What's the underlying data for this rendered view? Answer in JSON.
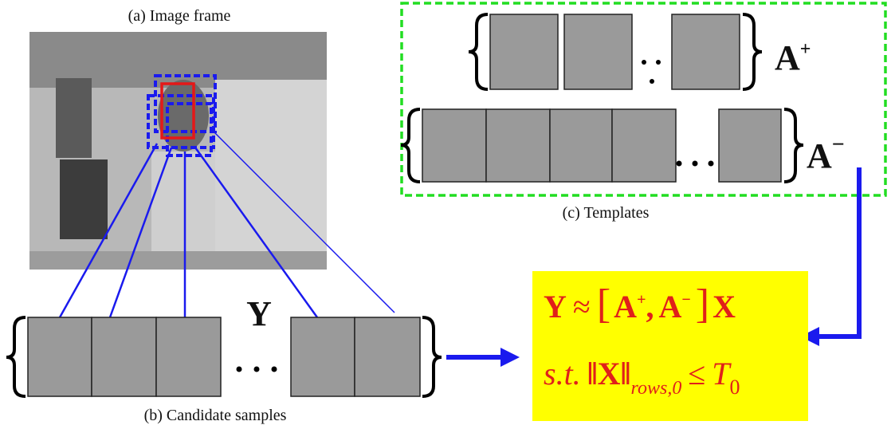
{
  "captions": {
    "image_frame": "(a) Image frame",
    "candidate_samples": "(b) Candidate samples",
    "templates": "(c) Templates"
  },
  "symbols": {
    "candidates": "Y",
    "positive": {
      "base": "A",
      "sup": "+"
    },
    "negative": {
      "base": "A",
      "sup": "−"
    }
  },
  "equation": {
    "line1": {
      "lhs": "Y",
      "approx": "≈",
      "open": "[",
      "a": "A",
      "plus": "+",
      "comma": ",",
      "b": "A",
      "minus": "−",
      "close": "]",
      "x": "X"
    },
    "line2": {
      "st": "s.t.",
      "norm": "‖X‖",
      "sub": "rows,0",
      "leq": "≤",
      "t": "T",
      "t_sub": "0"
    }
  }
}
